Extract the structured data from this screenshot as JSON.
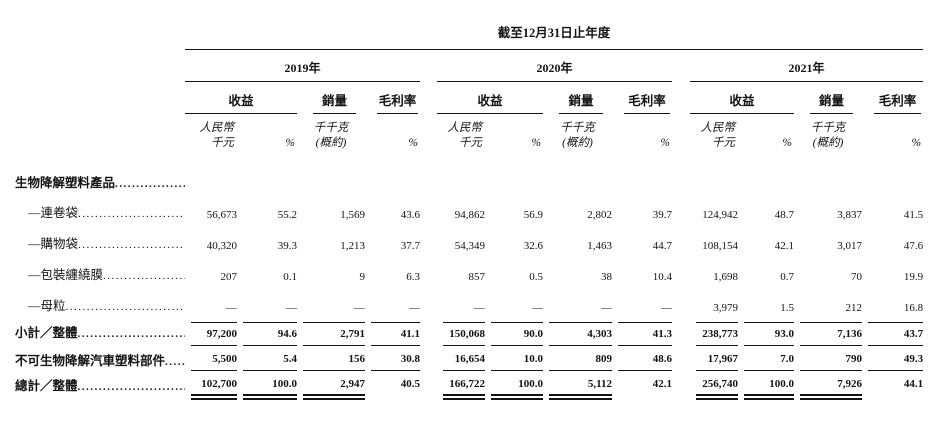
{
  "page": {
    "title": "截至12月31日止年度"
  },
  "table": {
    "years": [
      "2019年",
      "2020年",
      "2021年"
    ],
    "group_headers": {
      "revenue": "收益",
      "volume": "銷量",
      "margin": "毛利率"
    },
    "units": {
      "rmb_line1": "人民幣",
      "rmb_line2": "千元",
      "pct": "%",
      "kg_line1": "千千克",
      "kg_line2": "(概約)"
    },
    "rows": [
      {
        "label": "生物降解塑料產品",
        "style": "section",
        "values": [
          "",
          "",
          "",
          "",
          "",
          "",
          "",
          "",
          "",
          "",
          "",
          ""
        ]
      },
      {
        "label": "—連卷袋",
        "style": "item",
        "values": [
          "56,673",
          "55.2",
          "1,569",
          "43.6",
          "94,862",
          "56.9",
          "2,802",
          "39.7",
          "124,942",
          "48.7",
          "3,837",
          "41.5"
        ]
      },
      {
        "label": "—購物袋",
        "style": "item",
        "values": [
          "40,320",
          "39.3",
          "1,213",
          "37.7",
          "54,349",
          "32.6",
          "1,463",
          "44.7",
          "108,154",
          "42.1",
          "3,017",
          "47.6"
        ]
      },
      {
        "label": "—包裝纏繞膜 ",
        "style": "item",
        "values": [
          "207",
          "0.1",
          "9",
          "6.3",
          "857",
          "0.5",
          "38",
          "10.4",
          "1,698",
          "0.7",
          "70",
          "19.9"
        ]
      },
      {
        "label": "—母粒",
        "style": "item",
        "values": [
          "—",
          "—",
          "—",
          "—",
          "—",
          "—",
          "—",
          "—",
          "3,979",
          "1.5",
          "212",
          "16.8"
        ]
      },
      {
        "label": "小計／整體 ",
        "style": "subtotal",
        "values": [
          "97,200",
          "94.6",
          "2,791",
          "41.1",
          "150,068",
          "90.0",
          "4,303",
          "41.3",
          "238,773",
          "93.0",
          "7,136",
          "43.7"
        ]
      },
      {
        "label": "不可生物降解汽車塑料部件",
        "style": "nonbio",
        "values": [
          "5,500",
          "5.4",
          "156",
          "30.8",
          "16,654",
          "10.0",
          "809",
          "48.6",
          "17,967",
          "7.0",
          "790",
          "49.3"
        ]
      },
      {
        "label": "總計／整體 ",
        "style": "total",
        "values": [
          "102,700",
          "100.0",
          "2,947",
          "40.5",
          "166,722",
          "100.0",
          "5,112",
          "42.1",
          "256,740",
          "100.0",
          "7,926",
          "44.1"
        ]
      }
    ]
  }
}
